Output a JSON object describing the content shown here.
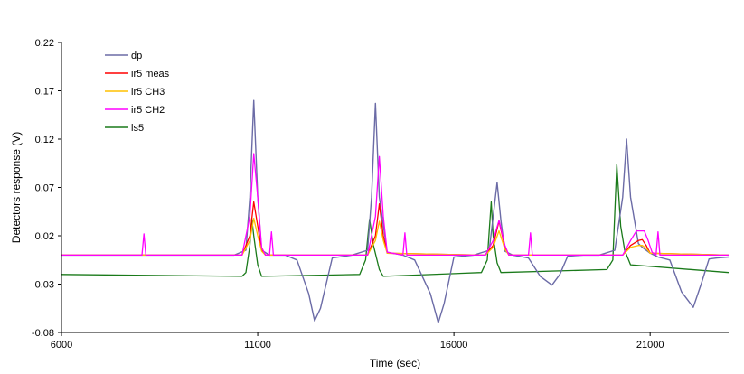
{
  "chart_data": {
    "type": "line",
    "title": "",
    "xlabel": "Time (sec)",
    "ylabel": "Detectors response (V)",
    "xlim": [
      6000,
      23000
    ],
    "ylim": [
      -0.08,
      0.22
    ],
    "x_ticks": [
      "6000",
      "11000",
      "16000",
      "21000"
    ],
    "y_ticks": [
      "-0.08",
      "-0.03",
      "0.02",
      "0.07",
      "0.12",
      "0.17",
      "0.22"
    ],
    "grid": false,
    "legend_position": "top-left",
    "colors": {
      "dp": "#6b6ba6",
      "ir5 meas": "#ff0000",
      "ir5 CH3": "#ffc000",
      "ir5 CH2": "#ff00ff",
      "ls5": "#1a7a1a",
      "axis": "#000000"
    },
    "series": [
      {
        "name": "dp",
        "x": [
          6000,
          10400,
          10700,
          10800,
          10900,
          11000,
          11100,
          11300,
          11700,
          12000,
          12300,
          12450,
          12600,
          12900,
          13400,
          13800,
          13900,
          14000,
          14100,
          14300,
          14700,
          15000,
          15400,
          15600,
          15750,
          16000,
          16500,
          16900,
          17100,
          17200,
          17300,
          17500,
          17900,
          18200,
          18500,
          18700,
          18900,
          19300,
          19700,
          20100,
          20300,
          20400,
          20500,
          20700,
          20800,
          21000,
          21200,
          21500,
          21800,
          22100,
          22300,
          22500,
          22700,
          23000
        ],
        "y": [
          0.0,
          0.0,
          0.005,
          0.06,
          0.16,
          0.06,
          0.005,
          0.0,
          0.0,
          -0.005,
          -0.04,
          -0.068,
          -0.055,
          -0.003,
          0.0,
          0.005,
          0.06,
          0.157,
          0.06,
          0.003,
          0.0,
          -0.005,
          -0.04,
          -0.07,
          -0.05,
          -0.002,
          0.0,
          0.005,
          0.075,
          0.035,
          0.004,
          0.0,
          -0.003,
          -0.022,
          -0.031,
          -0.02,
          -0.001,
          0.0,
          0.0,
          0.005,
          0.06,
          0.12,
          0.06,
          0.012,
          0.008,
          0.002,
          -0.002,
          -0.005,
          -0.038,
          -0.054,
          -0.03,
          -0.004,
          -0.003,
          -0.002
        ]
      },
      {
        "name": "ir5 meas",
        "x": [
          6000,
          10600,
          10800,
          10900,
          11000,
          11100,
          11200,
          13800,
          14000,
          14100,
          14200,
          14300,
          16800,
          17000,
          17150,
          17300,
          17400,
          20300,
          20500,
          20700,
          20800,
          20900,
          21000,
          23000
        ],
        "y": [
          0.0,
          0.0,
          0.02,
          0.055,
          0.03,
          0.005,
          0.0,
          0.0,
          0.02,
          0.053,
          0.02,
          0.002,
          0.0,
          0.01,
          0.035,
          0.008,
          0.0,
          0.0,
          0.01,
          0.015,
          0.016,
          0.01,
          0.002,
          0.0
        ]
      },
      {
        "name": "ir5 CH3",
        "x": [
          6000,
          10600,
          10800,
          10900,
          11000,
          11100,
          11200,
          13800,
          14000,
          14100,
          14200,
          14300,
          16800,
          17000,
          17150,
          17300,
          17400,
          20300,
          20500,
          20700,
          20800,
          20900,
          21000,
          23000
        ],
        "y": [
          0.0,
          0.0,
          0.015,
          0.038,
          0.02,
          0.004,
          0.0,
          0.0,
          0.015,
          0.035,
          0.015,
          0.002,
          0.0,
          0.008,
          0.025,
          0.006,
          0.0,
          0.0,
          0.008,
          0.01,
          0.01,
          0.007,
          0.002,
          0.0
        ]
      },
      {
        "name": "ir5 CH2",
        "x": [
          6000,
          8050,
          8100,
          8150,
          10600,
          10800,
          10900,
          11000,
          11100,
          11200,
          11300,
          11350,
          11400,
          13800,
          14000,
          14100,
          14200,
          14300,
          14700,
          14750,
          14800,
          16800,
          17000,
          17150,
          17300,
          17400,
          17900,
          17950,
          18000,
          20300,
          20500,
          20650,
          20850,
          20950,
          21050,
          21150,
          21200,
          21250,
          23000
        ],
        "y": [
          0.0,
          0.0,
          0.022,
          0.0,
          0.0,
          0.04,
          0.105,
          0.06,
          0.008,
          0.0,
          0.0,
          0.024,
          0.0,
          0.0,
          0.04,
          0.102,
          0.04,
          0.003,
          0.0,
          0.023,
          0.0,
          0.0,
          0.015,
          0.036,
          0.01,
          0.0,
          0.0,
          0.023,
          0.0,
          0.0,
          0.015,
          0.025,
          0.025,
          0.015,
          0.003,
          0.0,
          0.024,
          0.0,
          0.0
        ]
      },
      {
        "name": "ls5",
        "x": [
          6000,
          10600,
          10700,
          10800,
          10850,
          10900,
          11000,
          11100,
          13600,
          13750,
          13850,
          13950,
          14100,
          14200,
          16700,
          16850,
          16950,
          17000,
          17100,
          17200,
          19900,
          20050,
          20150,
          20250,
          20350,
          20500,
          23000
        ],
        "y": [
          -0.02,
          -0.022,
          -0.018,
          0.01,
          0.038,
          0.02,
          -0.01,
          -0.022,
          -0.02,
          -0.005,
          0.037,
          0.01,
          -0.015,
          -0.022,
          -0.018,
          -0.005,
          0.055,
          0.02,
          -0.008,
          -0.018,
          -0.015,
          -0.005,
          0.094,
          0.03,
          0.005,
          -0.01,
          -0.018
        ]
      }
    ]
  }
}
